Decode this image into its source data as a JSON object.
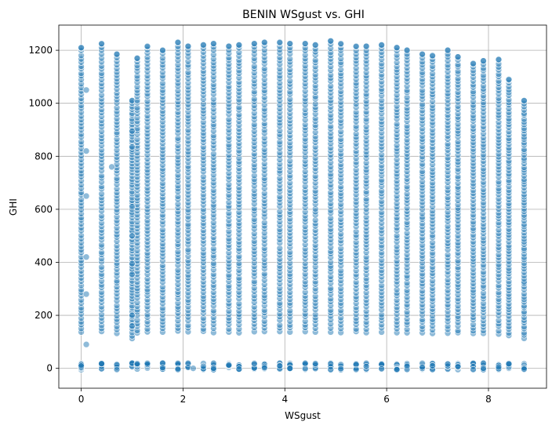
{
  "chart_data": {
    "type": "scatter",
    "title": "BENIN WSgust vs. GHI",
    "xlabel": "WSgust",
    "ylabel": "GHI",
    "xlim": [
      -0.44,
      9.14
    ],
    "ylim": [
      -75,
      1295
    ],
    "x_ticks": [
      0,
      2,
      4,
      6,
      8
    ],
    "y_ticks": [
      0,
      200,
      400,
      600,
      800,
      1000,
      1200
    ],
    "grid": true,
    "color": "#1f77b4",
    "x_values": [
      0.0,
      0.4,
      0.7,
      1.0,
      1.1,
      1.3,
      1.6,
      1.9,
      2.1,
      2.4,
      2.6,
      2.9,
      3.1,
      3.4,
      3.6,
      3.9,
      4.1,
      4.4,
      4.6,
      4.9,
      5.1,
      5.4,
      5.6,
      5.9,
      6.2,
      6.4,
      6.7,
      6.9,
      7.2,
      7.4,
      7.7,
      7.9,
      8.2,
      8.4,
      8.7
    ],
    "column_max_ghi": [
      1210,
      1225,
      1185,
      1010,
      1170,
      1215,
      1200,
      1230,
      1215,
      1220,
      1225,
      1215,
      1220,
      1225,
      1230,
      1230,
      1225,
      1225,
      1220,
      1235,
      1225,
      1215,
      1215,
      1220,
      1210,
      1200,
      1185,
      1180,
      1200,
      1175,
      1150,
      1160,
      1165,
      1090,
      1010
    ],
    "outliers": [
      {
        "x": 0.6,
        "y": 760
      },
      {
        "x": 1.0,
        "y": 895
      },
      {
        "x": 1.0,
        "y": 835
      },
      {
        "x": 1.0,
        "y": 610
      },
      {
        "x": 1.0,
        "y": 500
      },
      {
        "x": 1.0,
        "y": 395
      },
      {
        "x": 1.0,
        "y": 355
      },
      {
        "x": 1.0,
        "y": 200
      },
      {
        "x": 1.0,
        "y": 160
      },
      {
        "x": 2.2,
        "y": 0
      },
      {
        "x": 0.1,
        "y": 90
      },
      {
        "x": 0.1,
        "y": 280
      },
      {
        "x": 0.1,
        "y": 420
      },
      {
        "x": 0.1,
        "y": 650
      },
      {
        "x": 0.1,
        "y": 820
      },
      {
        "x": 0.1,
        "y": 1050
      }
    ]
  }
}
